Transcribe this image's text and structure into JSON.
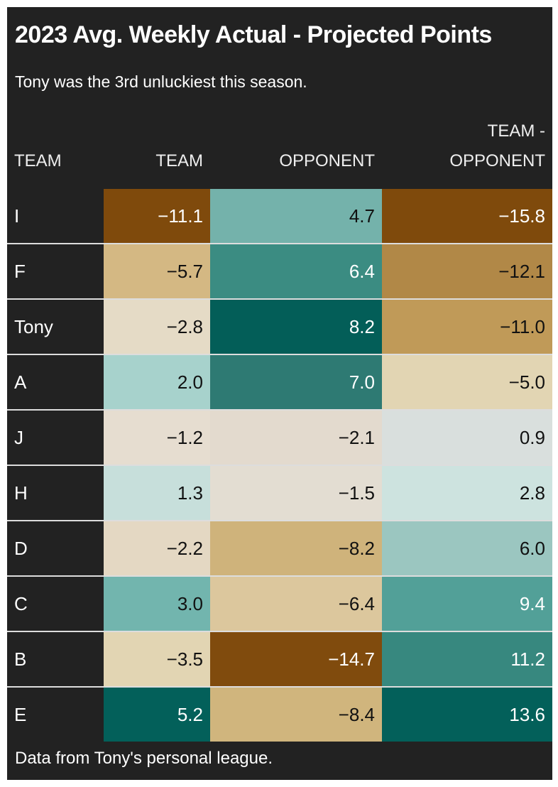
{
  "header": {
    "title": "2023 Avg. Weekly Actual - Projected Points",
    "subtitle": "Tony was the 3rd unluckiest this season."
  },
  "table": {
    "headers": [
      "TEAM",
      "TEAM",
      "OPPONENT",
      "TEAM - OPPONENT"
    ],
    "rows": [
      [
        "I",
        "−11.1",
        "4.7",
        "−15.8"
      ],
      [
        "F",
        "−5.7",
        "6.4",
        "−12.1"
      ],
      [
        "Tony",
        "−2.8",
        "8.2",
        "−11.0"
      ],
      [
        "A",
        "2.0",
        "7.0",
        "−5.0"
      ],
      [
        "J",
        "−1.2",
        "−2.1",
        "0.9"
      ],
      [
        "H",
        "1.3",
        "−1.5",
        "2.8"
      ],
      [
        "D",
        "−2.2",
        "−8.2",
        "6.0"
      ],
      [
        "C",
        "3.0",
        "−6.4",
        "9.4"
      ],
      [
        "B",
        "−3.5",
        "−14.7",
        "11.2"
      ],
      [
        "E",
        "5.2",
        "−8.4",
        "13.6"
      ]
    ],
    "colors": [
      [
        null,
        "#7f4a0c",
        "#74b2ab",
        "#7f4a0c"
      ],
      [
        null,
        "#d4b883",
        "#3b8c82",
        "#b18847"
      ],
      [
        null,
        "#e5dbc6",
        "#035e58",
        "#c09a58"
      ],
      [
        null,
        "#a7d2cc",
        "#2e7a73",
        "#e2d5b3"
      ],
      [
        null,
        "#e6ddd0",
        "#e3dace",
        "#d9dfdd"
      ],
      [
        null,
        "#c7dfdb",
        "#e3ddd2",
        "#cde3df"
      ],
      [
        null,
        "#e4d8c3",
        "#cfb37b",
        "#9bc6c0"
      ],
      [
        null,
        "#72b5ae",
        "#dcc79d",
        "#52a098"
      ],
      [
        null,
        "#e2d5b3",
        "#804b0d",
        "#37887f"
      ],
      [
        null,
        "#03605a",
        "#d0b57d",
        "#03605a"
      ]
    ]
  },
  "footer": {
    "note": "Data from Tony's personal league."
  }
}
